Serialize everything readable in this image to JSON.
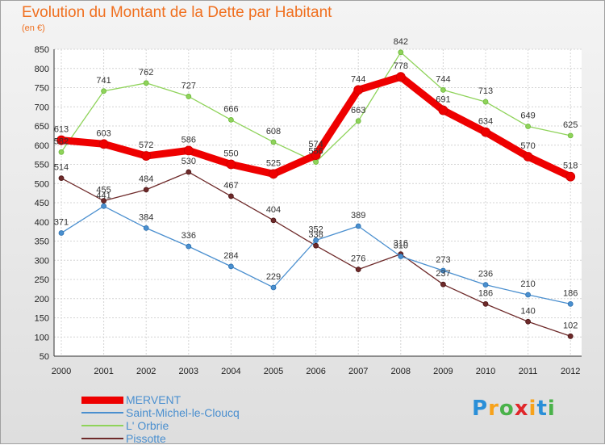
{
  "chart_data": {
    "type": "line",
    "title": "Evolution du Montant de la Dette par Habitant",
    "subtitle": "(en €)",
    "xlabel": "",
    "ylabel": "",
    "x": [
      "2000",
      "2001",
      "2002",
      "2003",
      "2004",
      "2005",
      "2006",
      "2007",
      "2008",
      "2009",
      "2010",
      "2011",
      "2012"
    ],
    "ylim": [
      50,
      850
    ],
    "yticks": [
      50,
      100,
      150,
      200,
      250,
      300,
      350,
      400,
      450,
      500,
      550,
      600,
      650,
      700,
      750,
      800,
      850
    ],
    "grid": true,
    "legend_position": "bottom-left",
    "series": [
      {
        "name": "MERVENT",
        "color": "#ee0000",
        "values": [
          613,
          603,
          572,
          586,
          550,
          525,
          574,
          744,
          778,
          691,
          634,
          570,
          518
        ]
      },
      {
        "name": "Saint-Michel-le-Cloucq",
        "color": "#4a8fcf",
        "values": [
          371,
          441,
          384,
          336,
          284,
          229,
          352,
          389,
          310,
          273,
          236,
          210,
          186
        ]
      },
      {
        "name": "L' Orbrie",
        "color": "#8fd35a",
        "values": [
          582,
          741,
          762,
          727,
          666,
          608,
          556,
          663,
          842,
          744,
          713,
          649,
          625
        ]
      },
      {
        "name": "Pissotte",
        "color": "#6e2a2a",
        "values": [
          514,
          455,
          484,
          530,
          467,
          404,
          338,
          276,
          316,
          237,
          186,
          140,
          102
        ]
      }
    ]
  },
  "logo": {
    "letters": [
      "P",
      "r",
      "o",
      "x",
      "i",
      "t",
      "i"
    ],
    "colors": [
      "#2a8fd8",
      "#f7a21b",
      "#4ab24a",
      "#e0262a",
      "#f7a21b",
      "#2a8fd8",
      "#4ab24a"
    ]
  }
}
